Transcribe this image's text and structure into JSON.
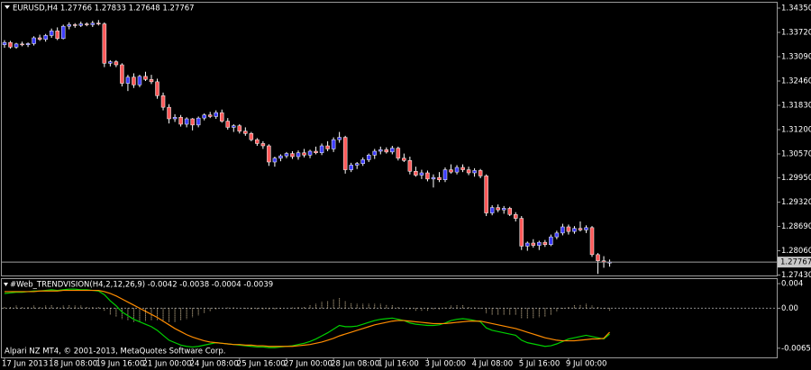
{
  "chart_data": [
    {
      "type": "candlestick",
      "title": "EURUSD,H4  1.27766 1.27833 1.27648 1.27767",
      "categories": [
        "17 Jun 2013",
        null,
        null,
        null,
        null,
        null,
        null,
        null,
        "18 Jun 08:00",
        null,
        null,
        null,
        null,
        null,
        null,
        null,
        "19 Jun 16:00",
        null,
        null,
        null,
        null,
        null,
        null,
        null,
        "21 Jun 00:00",
        null,
        null,
        null,
        null,
        null,
        null,
        null,
        "24 Jun 08:00",
        null,
        null,
        null,
        null,
        null,
        null,
        null,
        "25 Jun 16:00",
        null,
        null,
        null,
        null,
        null,
        null,
        null,
        "27 Jun 00:00",
        null,
        null,
        null,
        null,
        null,
        null,
        null,
        "28 Jun 08:00",
        null,
        null,
        null,
        null,
        null,
        null,
        null,
        "1 Jul 16:00",
        null,
        null,
        null,
        null,
        null,
        null,
        null,
        "3 Jul 00:00",
        null,
        null,
        null,
        null,
        null,
        null,
        null,
        "4 Jul 08:00",
        null,
        null,
        null,
        null,
        null,
        null,
        null,
        "5 Jul 16:00",
        null,
        null,
        null,
        null,
        null,
        null,
        null,
        "9 Jul 00:00",
        null,
        null,
        null,
        null,
        null,
        null,
        null
      ],
      "ohlc": [
        [
          1.334,
          1.3352,
          1.3332,
          1.3346
        ],
        [
          1.3346,
          1.335,
          1.333,
          1.3334
        ],
        [
          1.3334,
          1.3345,
          1.333,
          1.3342
        ],
        [
          1.3342,
          1.3348,
          1.3336,
          1.334
        ],
        [
          1.334,
          1.3346,
          1.3334,
          1.3343
        ],
        [
          1.3343,
          1.3362,
          1.3338,
          1.3358
        ],
        [
          1.3358,
          1.3366,
          1.335,
          1.3354
        ],
        [
          1.3354,
          1.3368,
          1.3348,
          1.3364
        ],
        [
          1.3364,
          1.3382,
          1.3358,
          1.3376
        ],
        [
          1.3376,
          1.3385,
          1.3352,
          1.3356
        ],
        [
          1.3356,
          1.3392,
          1.3354,
          1.3388
        ],
        [
          1.3388,
          1.3398,
          1.338,
          1.3392
        ],
        [
          1.3392,
          1.3396,
          1.3384,
          1.339
        ],
        [
          1.339,
          1.34,
          1.3386,
          1.3394
        ],
        [
          1.3394,
          1.3398,
          1.3388,
          1.3392
        ],
        [
          1.3392,
          1.3402,
          1.3386,
          1.3396
        ],
        [
          1.3396,
          1.3404,
          1.339,
          1.3394
        ],
        [
          1.3394,
          1.3398,
          1.3282,
          1.3292
        ],
        [
          1.3292,
          1.33,
          1.3284,
          1.3296
        ],
        [
          1.3296,
          1.33,
          1.3282,
          1.3288
        ],
        [
          1.3288,
          1.3292,
          1.3232,
          1.324
        ],
        [
          1.324,
          1.3262,
          1.322,
          1.3256
        ],
        [
          1.3256,
          1.3266,
          1.3228,
          1.3236
        ],
        [
          1.3236,
          1.3262,
          1.323,
          1.3258
        ],
        [
          1.3258,
          1.327,
          1.3246,
          1.325
        ],
        [
          1.325,
          1.3262,
          1.3238,
          1.3244
        ],
        [
          1.3244,
          1.3252,
          1.32,
          1.3208
        ],
        [
          1.3208,
          1.3216,
          1.317,
          1.3178
        ],
        [
          1.3178,
          1.3186,
          1.3136,
          1.3148
        ],
        [
          1.3148,
          1.316,
          1.314,
          1.3152
        ],
        [
          1.3152,
          1.3158,
          1.3128,
          1.3134
        ],
        [
          1.3134,
          1.3152,
          1.3126,
          1.3148
        ],
        [
          1.3148,
          1.315,
          1.3118,
          1.3132
        ],
        [
          1.3132,
          1.3154,
          1.3126,
          1.315
        ],
        [
          1.315,
          1.3162,
          1.3144,
          1.3158
        ],
        [
          1.3158,
          1.3166,
          1.315,
          1.3154
        ],
        [
          1.3154,
          1.317,
          1.3148,
          1.3164
        ],
        [
          1.3164,
          1.3172,
          1.3138,
          1.3142
        ],
        [
          1.3142,
          1.315,
          1.312,
          1.3126
        ],
        [
          1.3126,
          1.3134,
          1.3114,
          1.313
        ],
        [
          1.313,
          1.3134,
          1.311,
          1.3116
        ],
        [
          1.3116,
          1.3126,
          1.3104,
          1.311
        ],
        [
          1.311,
          1.3114,
          1.309,
          1.3094
        ],
        [
          1.3094,
          1.3098,
          1.3078,
          1.3084
        ],
        [
          1.3084,
          1.309,
          1.307,
          1.3078
        ],
        [
          1.3078,
          1.3082,
          1.3026,
          1.3036
        ],
        [
          1.3036,
          1.305,
          1.3024,
          1.3046
        ],
        [
          1.3046,
          1.3056,
          1.3038,
          1.3052
        ],
        [
          1.3052,
          1.3062,
          1.3046,
          1.3058
        ],
        [
          1.3058,
          1.3064,
          1.3044,
          1.305
        ],
        [
          1.305,
          1.3066,
          1.3042,
          1.306
        ],
        [
          1.306,
          1.307,
          1.3048,
          1.3054
        ],
        [
          1.3054,
          1.3068,
          1.3046,
          1.3064
        ],
        [
          1.3064,
          1.3076,
          1.3056,
          1.306
        ],
        [
          1.306,
          1.3084,
          1.3054,
          1.3078
        ],
        [
          1.3078,
          1.309,
          1.3064,
          1.307
        ],
        [
          1.307,
          1.31,
          1.3062,
          1.3094
        ],
        [
          1.3094,
          1.3114,
          1.3086,
          1.31
        ],
        [
          1.31,
          1.3104,
          1.3006,
          1.3016
        ],
        [
          1.3016,
          1.3034,
          1.301,
          1.3028
        ],
        [
          1.3028,
          1.3036,
          1.3018,
          1.3032
        ],
        [
          1.3032,
          1.3048,
          1.3026,
          1.3042
        ],
        [
          1.3042,
          1.3058,
          1.3036,
          1.3054
        ],
        [
          1.3054,
          1.307,
          1.3044,
          1.3064
        ],
        [
          1.3064,
          1.3076,
          1.3056,
          1.3068
        ],
        [
          1.3068,
          1.3074,
          1.3058,
          1.3062
        ],
        [
          1.3062,
          1.3078,
          1.3056,
          1.3072
        ],
        [
          1.3072,
          1.3076,
          1.304,
          1.3046
        ],
        [
          1.3046,
          1.3058,
          1.3036,
          1.304
        ],
        [
          1.304,
          1.305,
          1.3004,
          1.3012
        ],
        [
          1.3012,
          1.3024,
          1.2998,
          1.3002
        ],
        [
          1.3002,
          1.3016,
          1.2992,
          1.3008
        ],
        [
          1.3008,
          1.3014,
          1.2986,
          1.2992
        ],
        [
          1.2992,
          1.3004,
          1.297,
          1.2996
        ],
        [
          1.2996,
          1.301,
          1.2984,
          1.299
        ],
        [
          1.299,
          1.3022,
          1.2984,
          1.3016
        ],
        [
          1.3016,
          1.303,
          1.3006,
          1.301
        ],
        [
          1.301,
          1.3028,
          1.3004,
          1.3022
        ],
        [
          1.3022,
          1.303,
          1.301,
          1.3016
        ],
        [
          1.3016,
          1.3024,
          1.3002,
          1.3008
        ],
        [
          1.3008,
          1.302,
          1.2998,
          1.3014
        ],
        [
          1.3014,
          1.3018,
          1.2994,
          1.3
        ],
        [
          1.3,
          1.3004,
          1.2896,
          1.2904
        ],
        [
          1.2904,
          1.2924,
          1.2898,
          1.2918
        ],
        [
          1.2918,
          1.2926,
          1.2906,
          1.2912
        ],
        [
          1.2912,
          1.2922,
          1.2902,
          1.2916
        ],
        [
          1.2916,
          1.292,
          1.2896,
          1.29
        ],
        [
          1.29,
          1.2906,
          1.2882,
          1.289
        ],
        [
          1.289,
          1.2896,
          1.2808,
          1.2818
        ],
        [
          1.2818,
          1.283,
          1.2806,
          1.2826
        ],
        [
          1.2826,
          1.2836,
          1.2814,
          1.282
        ],
        [
          1.282,
          1.2832,
          1.2808,
          1.2828
        ],
        [
          1.2828,
          1.2834,
          1.2816,
          1.2822
        ],
        [
          1.2822,
          1.2848,
          1.2818,
          1.2842
        ],
        [
          1.2842,
          1.2858,
          1.2836,
          1.2852
        ],
        [
          1.2852,
          1.2876,
          1.2846,
          1.2868
        ],
        [
          1.2868,
          1.2874,
          1.2848,
          1.2856
        ],
        [
          1.2856,
          1.287,
          1.285,
          1.2864
        ],
        [
          1.2864,
          1.2882,
          1.2856,
          1.286
        ],
        [
          1.286,
          1.2872,
          1.2852,
          1.2866
        ],
        [
          1.2866,
          1.287,
          1.279,
          1.2796
        ],
        [
          1.2796,
          1.28,
          1.2746,
          1.278
        ],
        [
          1.278,
          1.2792,
          1.2762,
          1.2777
        ],
        [
          1.27766,
          1.27833,
          1.27648,
          1.27767
        ]
      ],
      "up_color": "#3c3cff",
      "down_color": "#ff5a5a",
      "wick_color": "#ffffff",
      "ylim": [
        1.2742,
        1.3449
      ],
      "yticks": [
        {
          "value": 1.3435,
          "label": "1.34350"
        },
        {
          "value": 1.3372,
          "label": "1.33720"
        },
        {
          "value": 1.3309,
          "label": "1.33090"
        },
        {
          "value": 1.3246,
          "label": "1.32460"
        },
        {
          "value": 1.3183,
          "label": "1.31830"
        },
        {
          "value": 1.312,
          "label": "1.31200"
        },
        {
          "value": 1.3057,
          "label": "1.30570"
        },
        {
          "value": 1.2995,
          "label": "1.29950"
        },
        {
          "value": 1.2932,
          "label": "1.29320"
        },
        {
          "value": 1.2869,
          "label": "1.28690"
        },
        {
          "value": 1.2806,
          "label": "1.28060"
        },
        {
          "value": 1.2743,
          "label": "1.27430"
        }
      ],
      "last_price_line": true
    },
    {
      "type": "line",
      "title": "#Web_TRENDVISION(H4,2,12,26,9) -0.0042 -0.0038 -0.0004 -0.0039",
      "annotation": "Alpari NZ MT4, © 2001-2013, MetaQuotes Software Corp.",
      "ylim": [
        -0.00785,
        0.00474
      ],
      "yticks": [
        0.004,
        {
          "value": 0,
          "label": "0.00"
        },
        -0.0065
      ],
      "zero_line": true,
      "series": [
        {
          "kind": "histogram",
          "color": "#e8d2a8",
          "values": [
            0.0003,
            0.0003,
            0.0004,
            0.0002,
            0.0003,
            0.0004,
            0.0003,
            0.0004,
            0.0005,
            0.0003,
            0.0004,
            0.0005,
            0.0004,
            0.0004,
            0.0003,
            0.0003,
            0.0002,
            -0.0004,
            -0.001,
            -0.0014,
            -0.0018,
            -0.002,
            -0.0022,
            -0.0022,
            -0.0021,
            -0.002,
            -0.002,
            -0.0022,
            -0.0023,
            -0.0022,
            -0.002,
            -0.0018,
            -0.0015,
            -0.0012,
            -0.0008,
            -0.0005,
            -0.0002,
            0,
            0.0001,
            0.0001,
            0,
            -0.0001,
            -0.0002,
            -0.0002,
            -0.0002,
            -0.0003,
            -0.0002,
            -0.0001,
            0,
            0.0001,
            0.0002,
            0.0003,
            0.0005,
            0.0007,
            0.001,
            0.0012,
            0.0015,
            0.0017,
            0.0012,
            0.0009,
            0.0007,
            0.0007,
            0.0007,
            0.0007,
            0.0007,
            0.0006,
            0.0005,
            0.0002,
            0,
            -0.0003,
            -0.0004,
            -0.0004,
            -0.0004,
            -0.0003,
            -0.0002,
            0.0001,
            0.0004,
            0.0005,
            0.0005,
            0.0003,
            0.0001,
            -0.0001,
            -0.0009,
            -0.0011,
            -0.0011,
            -0.0011,
            -0.0011,
            -0.0011,
            -0.0016,
            -0.0017,
            -0.0016,
            -0.0015,
            -0.0014,
            -0.0011,
            -0.0006,
            -0.0001,
            0.0003,
            0.0005,
            0.0006,
            0.0007,
            0.0004,
            0.0002,
            -0.0001,
            -0.0004
          ]
        },
        {
          "kind": "line",
          "color": "#00d000",
          "values": [
            0.0024,
            0.0025,
            0.0026,
            0.0026,
            0.0027,
            0.0028,
            0.0028,
            0.0029,
            0.003,
            0.0029,
            0.003,
            0.0031,
            0.0031,
            0.003,
            0.003,
            0.0029,
            0.0028,
            0.0022,
            0.0012,
            0.0004,
            -0.0006,
            -0.0012,
            -0.0018,
            -0.0022,
            -0.0026,
            -0.003,
            -0.0036,
            -0.0044,
            -0.0052,
            -0.0056,
            -0.006,
            -0.0062,
            -0.0063,
            -0.0062,
            -0.006,
            -0.0058,
            -0.0056,
            -0.0057,
            -0.0058,
            -0.0059,
            -0.006,
            -0.0061,
            -0.0062,
            -0.0063,
            -0.0063,
            -0.0064,
            -0.0064,
            -0.0063,
            -0.0062,
            -0.0061,
            -0.0059,
            -0.0057,
            -0.0054,
            -0.005,
            -0.0045,
            -0.004,
            -0.0034,
            -0.0028,
            -0.003,
            -0.003,
            -0.0029,
            -0.0026,
            -0.0023,
            -0.002,
            -0.0018,
            -0.0017,
            -0.0016,
            -0.0018,
            -0.002,
            -0.0024,
            -0.0026,
            -0.0027,
            -0.0028,
            -0.0028,
            -0.0027,
            -0.0024,
            -0.002,
            -0.0018,
            -0.0017,
            -0.0018,
            -0.002,
            -0.0022,
            -0.0032,
            -0.0036,
            -0.0038,
            -0.004,
            -0.0042,
            -0.0044,
            -0.0052,
            -0.0056,
            -0.0058,
            -0.006,
            -0.0062,
            -0.0061,
            -0.0058,
            -0.0054,
            -0.005,
            -0.0048,
            -0.0046,
            -0.0044,
            -0.0046,
            -0.0048,
            -0.005,
            -0.0042
          ]
        },
        {
          "kind": "line",
          "color": "#ff8c00",
          "values": [
            0.0027,
            0.0027,
            0.0027,
            0.0027,
            0.0027,
            0.0027,
            0.0028,
            0.0028,
            0.0028,
            0.0028,
            0.0029,
            0.0029,
            0.0029,
            0.0029,
            0.0029,
            0.0029,
            0.0029,
            0.0027,
            0.0024,
            0.002,
            0.0015,
            0.001,
            0.0005,
            0,
            -0.0005,
            -0.001,
            -0.0015,
            -0.0021,
            -0.0027,
            -0.0033,
            -0.0038,
            -0.0043,
            -0.0047,
            -0.005,
            -0.0053,
            -0.0055,
            -0.0056,
            -0.0057,
            -0.0058,
            -0.0059,
            -0.0059,
            -0.006,
            -0.006,
            -0.0061,
            -0.0061,
            -0.0062,
            -0.0062,
            -0.0062,
            -0.0062,
            -0.0062,
            -0.0061,
            -0.006,
            -0.0059,
            -0.0057,
            -0.0055,
            -0.0052,
            -0.0049,
            -0.0045,
            -0.0042,
            -0.0039,
            -0.0036,
            -0.0033,
            -0.003,
            -0.0027,
            -0.0025,
            -0.0023,
            -0.0021,
            -0.002,
            -0.002,
            -0.0021,
            -0.0022,
            -0.0023,
            -0.0024,
            -0.0025,
            -0.0025,
            -0.0025,
            -0.0024,
            -0.0023,
            -0.0022,
            -0.0021,
            -0.0021,
            -0.0021,
            -0.0023,
            -0.0025,
            -0.0027,
            -0.0029,
            -0.0031,
            -0.0033,
            -0.0036,
            -0.0039,
            -0.0042,
            -0.0045,
            -0.0048,
            -0.005,
            -0.0052,
            -0.0053,
            -0.0053,
            -0.0053,
            -0.0052,
            -0.0051,
            -0.005,
            -0.005,
            -0.0049,
            -0.0039
          ]
        }
      ]
    }
  ]
}
